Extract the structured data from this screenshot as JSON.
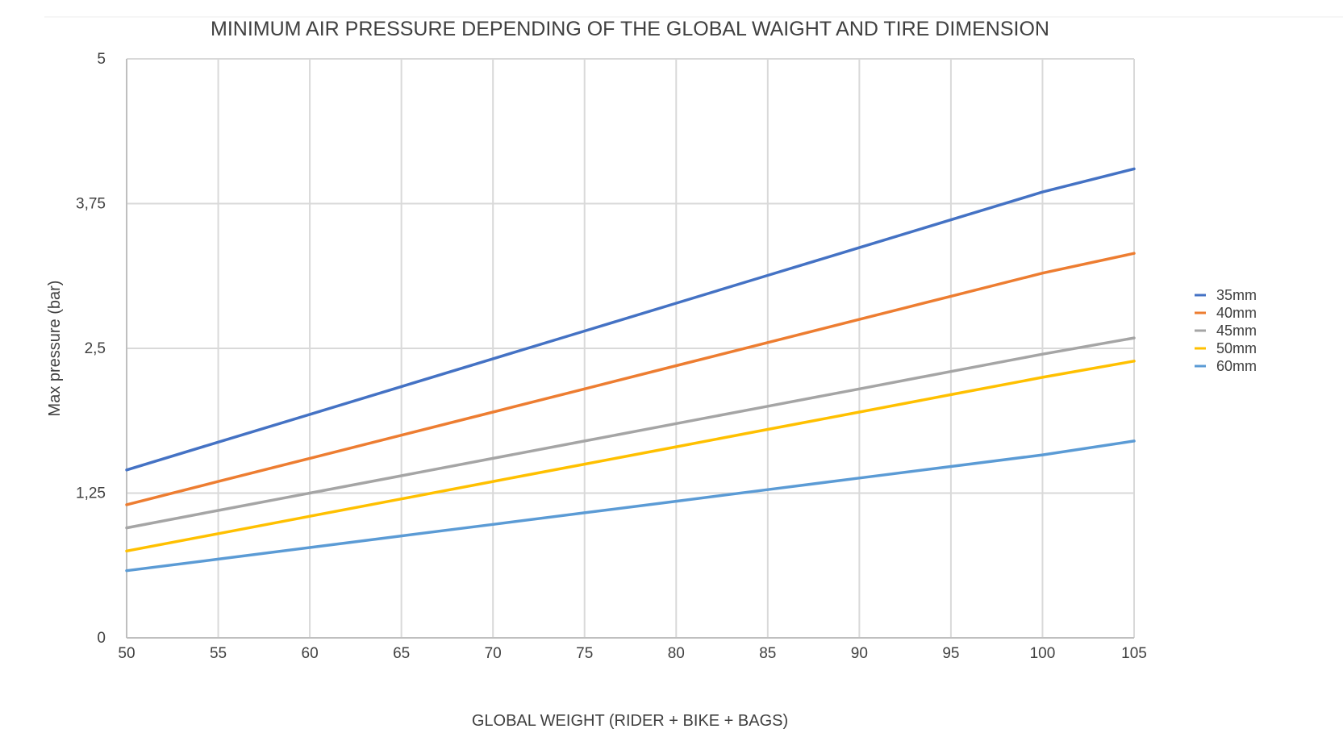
{
  "chart_data": {
    "type": "line",
    "title": "MINIMUM AIR PRESSURE DEPENDING OF THE GLOBAL WAIGHT AND TIRE DIMENSION",
    "xlabel": "GLOBAL WEIGHT (RIDER + BIKE + BAGS)",
    "ylabel": "Max pressure (bar)",
    "x": [
      50,
      55,
      60,
      65,
      70,
      75,
      80,
      85,
      90,
      95,
      100,
      105
    ],
    "x_tick_labels": [
      "50",
      "55",
      "60",
      "65",
      "70",
      "75",
      "80",
      "85",
      "90",
      "95",
      "100",
      "105"
    ],
    "xlim": [
      50,
      105
    ],
    "ylim": [
      0,
      5
    ],
    "y_ticks": [
      0,
      1.25,
      2.5,
      3.75,
      5
    ],
    "y_tick_labels": [
      "0",
      "1,25",
      "2,5",
      "3,75",
      "5"
    ],
    "grid": true,
    "legend_position": "right",
    "series": [
      {
        "name": "35mm",
        "color": "#4472c4",
        "values": [
          1.45,
          1.69,
          1.93,
          2.17,
          2.41,
          2.65,
          2.89,
          3.13,
          3.37,
          3.61,
          3.85,
          4.05
        ]
      },
      {
        "name": "40mm",
        "color": "#ed7d31",
        "values": [
          1.15,
          1.35,
          1.55,
          1.75,
          1.95,
          2.15,
          2.35,
          2.55,
          2.75,
          2.95,
          3.15,
          3.32
        ]
      },
      {
        "name": "45mm",
        "color": "#a5a5a5",
        "values": [
          0.95,
          1.1,
          1.25,
          1.4,
          1.55,
          1.7,
          1.85,
          2.0,
          2.15,
          2.3,
          2.45,
          2.59
        ]
      },
      {
        "name": "50mm",
        "color": "#ffc000",
        "values": [
          0.75,
          0.9,
          1.05,
          1.2,
          1.35,
          1.5,
          1.65,
          1.8,
          1.95,
          2.1,
          2.25,
          2.39
        ]
      },
      {
        "name": "60mm",
        "color": "#5b9bd5",
        "values": [
          0.58,
          0.68,
          0.78,
          0.88,
          0.98,
          1.08,
          1.18,
          1.28,
          1.38,
          1.48,
          1.58,
          1.7
        ]
      }
    ]
  }
}
